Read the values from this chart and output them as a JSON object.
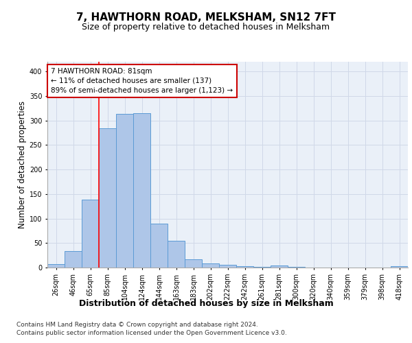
{
  "title": "7, HAWTHORN ROAD, MELKSHAM, SN12 7FT",
  "subtitle": "Size of property relative to detached houses in Melksham",
  "xlabel": "Distribution of detached houses by size in Melksham",
  "ylabel": "Number of detached properties",
  "footnote1": "Contains HM Land Registry data © Crown copyright and database right 2024.",
  "footnote2": "Contains public sector information licensed under the Open Government Licence v3.0.",
  "bar_values": [
    7,
    33,
    138,
    284,
    313,
    315,
    90,
    55,
    17,
    9,
    5,
    3,
    2,
    4,
    2,
    0,
    0,
    0,
    0,
    0,
    3
  ],
  "x_labels": [
    "26sqm",
    "46sqm",
    "65sqm",
    "85sqm",
    "104sqm",
    "124sqm",
    "144sqm",
    "163sqm",
    "183sqm",
    "202sqm",
    "222sqm",
    "242sqm",
    "261sqm",
    "281sqm",
    "300sqm",
    "320sqm",
    "340sqm",
    "359sqm",
    "379sqm",
    "398sqm",
    "418sqm"
  ],
  "bar_color": "#aec6e8",
  "bar_edge_color": "#5b9bd5",
  "grid_color": "#d0d8e8",
  "background_color": "#eaf0f8",
  "red_line_x": 2.5,
  "annotation_text": "7 HAWTHORN ROAD: 81sqm\n← 11% of detached houses are smaller (137)\n89% of semi-detached houses are larger (1,123) →",
  "annotation_box_color": "#ffffff",
  "annotation_border_color": "#cc0000",
  "ylim": [
    0,
    420
  ],
  "yticks": [
    0,
    50,
    100,
    150,
    200,
    250,
    300,
    350,
    400
  ],
  "title_fontsize": 11,
  "subtitle_fontsize": 9,
  "xlabel_fontsize": 9,
  "ylabel_fontsize": 8.5,
  "tick_fontsize": 7,
  "annotation_fontsize": 7.5,
  "footnote_fontsize": 6.5
}
